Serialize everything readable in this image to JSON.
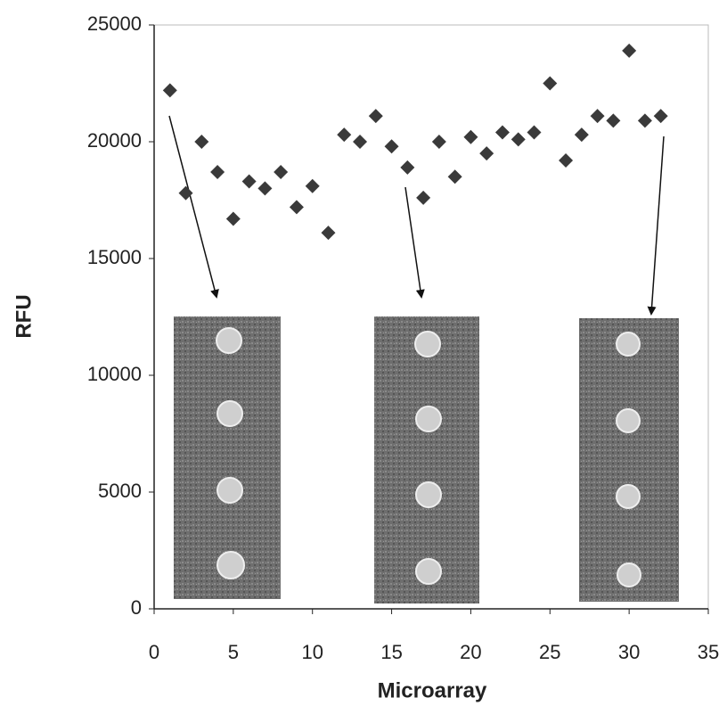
{
  "chart_data": {
    "type": "scatter",
    "x_label": "Microarray",
    "y_label": "RFU",
    "x": [
      1,
      2,
      3,
      4,
      5,
      6,
      7,
      8,
      9,
      10,
      11,
      12,
      13,
      14,
      15,
      16,
      17,
      18,
      19,
      20,
      21,
      22,
      23,
      24,
      25,
      26,
      27,
      28,
      29,
      30,
      31,
      32
    ],
    "values": [
      22200,
      17800,
      20000,
      18700,
      16700,
      18300,
      18000,
      18700,
      17200,
      18100,
      16100,
      20300,
      20000,
      21100,
      19800,
      18900,
      17600,
      20000,
      18500,
      20200,
      19500,
      20400,
      20100,
      20400,
      22500,
      19200,
      20300,
      21100,
      20900,
      23900,
      20900,
      21100
    ],
    "color": "#3a3a3a",
    "xlim": [
      0,
      35
    ],
    "xticks": [
      0,
      5,
      10,
      15,
      20,
      25,
      30,
      35
    ],
    "ylim": [
      0,
      25000
    ],
    "yticks": [
      0,
      5000,
      10000,
      15000,
      20000,
      25000
    ]
  }
}
